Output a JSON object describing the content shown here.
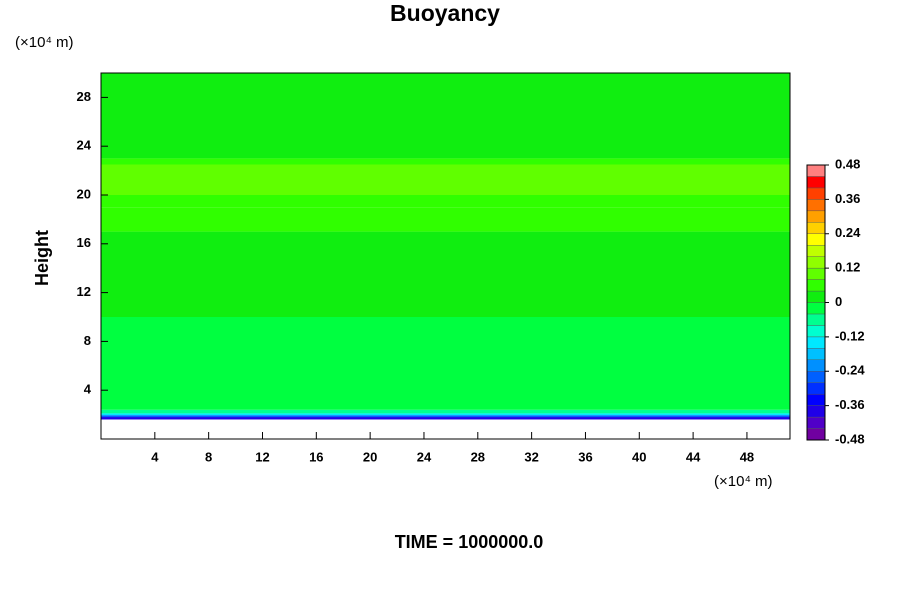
{
  "chart_data": {
    "type": "heatmap",
    "title": "Buoyancy",
    "ylabel": "Height",
    "x_unit": "(×10⁴ m)",
    "y_unit": "(×10⁴ m)",
    "footer": "TIME = 1000000.0",
    "xlim": [
      0,
      51.2
    ],
    "ylim": [
      0,
      30
    ],
    "xticks": [
      4,
      8,
      12,
      16,
      20,
      24,
      28,
      32,
      36,
      40,
      44,
      48
    ],
    "yticks": [
      4,
      8,
      12,
      16,
      20,
      24,
      28
    ],
    "y_edges": [
      1.6,
      1.8,
      1.95,
      2.1,
      2.4,
      10,
      17,
      19,
      20,
      22.5,
      23,
      30
    ],
    "values": [
      -0.4,
      -0.28,
      -0.14,
      -0.06,
      -0.02,
      0.02,
      0.05,
      0.07,
      0.1,
      0.05,
      0.02
    ],
    "levels": [
      -0.48,
      -0.44,
      -0.4,
      -0.36,
      -0.32,
      -0.28,
      -0.24,
      -0.2,
      -0.16,
      -0.12,
      -0.08,
      -0.04,
      0,
      0.04,
      0.08,
      0.12,
      0.16,
      0.2,
      0.24,
      0.28,
      0.32,
      0.36,
      0.4,
      0.44,
      0.48
    ],
    "colors": [
      "#7000a0",
      "#5000c8",
      "#2000e8",
      "#0000ff",
      "#0030ff",
      "#0060ff",
      "#0090ff",
      "#00c0ff",
      "#00e8ff",
      "#00ffd0",
      "#00ff90",
      "#00ff40",
      "#10ee10",
      "#30ff00",
      "#60ff00",
      "#90ff00",
      "#c0ff00",
      "#ffff00",
      "#ffd000",
      "#ffa000",
      "#ff7000",
      "#ff4000",
      "#ff0000",
      "#ff8080"
    ],
    "cbar_ticks": [
      -0.48,
      -0.36,
      -0.24,
      -0.12,
      0,
      0.12,
      0.24,
      0.36,
      0.48
    ]
  }
}
